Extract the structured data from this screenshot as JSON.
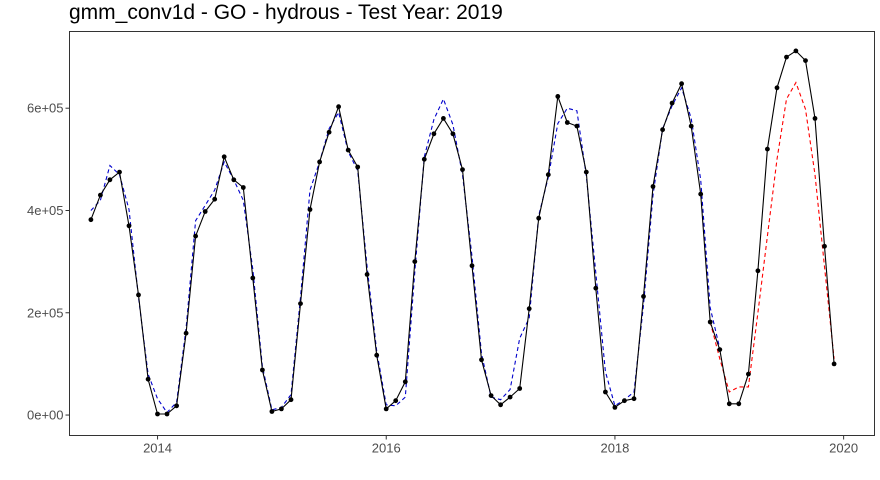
{
  "chart_data": {
    "type": "line",
    "title": "gmm_conv1d - GO - hydrous - Test Year: 2019",
    "xlabel": "",
    "ylabel": "",
    "xlim": [
      2013.23,
      2020.27
    ],
    "ylim": [
      -40000,
      750000
    ],
    "grid": false,
    "x_ticks": [
      {
        "value": 2014,
        "label": "2014"
      },
      {
        "value": 2016,
        "label": "2016"
      },
      {
        "value": 2018,
        "label": "2018"
      },
      {
        "value": 2020,
        "label": "2020"
      }
    ],
    "y_ticks": [
      {
        "value": 0,
        "label": "0e+00"
      },
      {
        "value": 200000,
        "label": "2e+05"
      },
      {
        "value": 400000,
        "label": "4e+05"
      },
      {
        "value": 600000,
        "label": "6e+05"
      }
    ],
    "series": [
      {
        "role": "observed",
        "color": "#000000",
        "dash": "solid",
        "markers": true,
        "points": [
          [
            2013.417,
            382000
          ],
          [
            2013.5,
            430000
          ],
          [
            2013.583,
            460000
          ],
          [
            2013.667,
            475000
          ],
          [
            2013.75,
            370000
          ],
          [
            2013.833,
            235000
          ],
          [
            2013.917,
            70000
          ],
          [
            2014.0,
            2000
          ],
          [
            2014.083,
            2000
          ],
          [
            2014.167,
            18000
          ],
          [
            2014.25,
            160000
          ],
          [
            2014.333,
            350000
          ],
          [
            2014.417,
            398000
          ],
          [
            2014.5,
            422000
          ],
          [
            2014.583,
            505000
          ],
          [
            2014.667,
            460000
          ],
          [
            2014.75,
            445000
          ],
          [
            2014.833,
            268000
          ],
          [
            2014.917,
            88000
          ],
          [
            2015.0,
            7000
          ],
          [
            2015.083,
            12000
          ],
          [
            2015.167,
            30000
          ],
          [
            2015.25,
            218000
          ],
          [
            2015.333,
            402000
          ],
          [
            2015.417,
            495000
          ],
          [
            2015.5,
            553000
          ],
          [
            2015.583,
            603000
          ],
          [
            2015.667,
            518000
          ],
          [
            2015.75,
            485000
          ],
          [
            2015.833,
            275000
          ],
          [
            2015.917,
            117000
          ],
          [
            2016.0,
            12000
          ],
          [
            2016.083,
            28000
          ],
          [
            2016.167,
            65000
          ],
          [
            2016.25,
            300000
          ],
          [
            2016.333,
            500000
          ],
          [
            2016.417,
            550000
          ],
          [
            2016.5,
            580000
          ],
          [
            2016.583,
            550000
          ],
          [
            2016.667,
            480000
          ],
          [
            2016.75,
            292000
          ],
          [
            2016.833,
            108000
          ],
          [
            2016.917,
            38000
          ],
          [
            2017.0,
            20000
          ],
          [
            2017.083,
            35000
          ],
          [
            2017.167,
            52000
          ],
          [
            2017.25,
            208000
          ],
          [
            2017.333,
            385000
          ],
          [
            2017.417,
            470000
          ],
          [
            2017.5,
            623000
          ],
          [
            2017.583,
            572000
          ],
          [
            2017.667,
            565000
          ],
          [
            2017.75,
            475000
          ],
          [
            2017.833,
            248000
          ],
          [
            2017.917,
            45000
          ],
          [
            2018.0,
            15000
          ],
          [
            2018.083,
            28000
          ],
          [
            2018.167,
            32000
          ],
          [
            2018.25,
            232000
          ],
          [
            2018.333,
            447000
          ],
          [
            2018.417,
            558000
          ],
          [
            2018.5,
            610000
          ],
          [
            2018.583,
            648000
          ],
          [
            2018.667,
            565000
          ],
          [
            2018.75,
            432000
          ],
          [
            2018.833,
            182000
          ],
          [
            2018.917,
            128000
          ],
          [
            2019.0,
            22000
          ],
          [
            2019.083,
            22000
          ],
          [
            2019.167,
            80000
          ],
          [
            2019.25,
            282000
          ],
          [
            2019.333,
            520000
          ],
          [
            2019.417,
            640000
          ],
          [
            2019.5,
            700000
          ],
          [
            2019.583,
            712000
          ],
          [
            2019.667,
            693000
          ],
          [
            2019.75,
            580000
          ],
          [
            2019.833,
            330000
          ],
          [
            2019.917,
            100000
          ]
        ]
      },
      {
        "role": "fitted",
        "color": "#0000cc",
        "dash": "dashed",
        "markers": false,
        "points": [
          [
            2013.417,
            400000
          ],
          [
            2013.5,
            420000
          ],
          [
            2013.583,
            488000
          ],
          [
            2013.667,
            470000
          ],
          [
            2013.75,
            402000
          ],
          [
            2013.833,
            230000
          ],
          [
            2013.917,
            80000
          ],
          [
            2014.0,
            32000
          ],
          [
            2014.083,
            5000
          ],
          [
            2014.167,
            25000
          ],
          [
            2014.25,
            170000
          ],
          [
            2014.333,
            380000
          ],
          [
            2014.417,
            410000
          ],
          [
            2014.5,
            440000
          ],
          [
            2014.583,
            495000
          ],
          [
            2014.667,
            460000
          ],
          [
            2014.75,
            420000
          ],
          [
            2014.833,
            285000
          ],
          [
            2014.917,
            95000
          ],
          [
            2015.0,
            10000
          ],
          [
            2015.083,
            15000
          ],
          [
            2015.167,
            40000
          ],
          [
            2015.25,
            230000
          ],
          [
            2015.333,
            440000
          ],
          [
            2015.417,
            495000
          ],
          [
            2015.5,
            560000
          ],
          [
            2015.583,
            592000
          ],
          [
            2015.667,
            515000
          ],
          [
            2015.75,
            478000
          ],
          [
            2015.833,
            290000
          ],
          [
            2015.917,
            125000
          ],
          [
            2016.0,
            20000
          ],
          [
            2016.083,
            18000
          ],
          [
            2016.167,
            35000
          ],
          [
            2016.25,
            280000
          ],
          [
            2016.333,
            505000
          ],
          [
            2016.417,
            578000
          ],
          [
            2016.5,
            618000
          ],
          [
            2016.583,
            568000
          ],
          [
            2016.667,
            470000
          ],
          [
            2016.75,
            310000
          ],
          [
            2016.833,
            120000
          ],
          [
            2016.917,
            35000
          ],
          [
            2017.0,
            30000
          ],
          [
            2017.083,
            50000
          ],
          [
            2017.167,
            150000
          ],
          [
            2017.25,
            190000
          ],
          [
            2017.333,
            390000
          ],
          [
            2017.417,
            465000
          ],
          [
            2017.5,
            570000
          ],
          [
            2017.583,
            600000
          ],
          [
            2017.667,
            595000
          ],
          [
            2017.75,
            468000
          ],
          [
            2017.833,
            278000
          ],
          [
            2017.917,
            85000
          ],
          [
            2018.0,
            18000
          ],
          [
            2018.083,
            30000
          ],
          [
            2018.167,
            45000
          ],
          [
            2018.25,
            215000
          ],
          [
            2018.333,
            430000
          ],
          [
            2018.417,
            560000
          ],
          [
            2018.5,
            605000
          ],
          [
            2018.583,
            640000
          ],
          [
            2018.667,
            580000
          ],
          [
            2018.75,
            460000
          ],
          [
            2018.833,
            210000
          ],
          [
            2018.917,
            130000
          ]
        ]
      },
      {
        "role": "forecast",
        "color": "#ff0000",
        "dash": "dashed",
        "markers": false,
        "points": [
          [
            2018.833,
            182000
          ],
          [
            2018.917,
            110000
          ],
          [
            2019.0,
            45000
          ],
          [
            2019.083,
            55000
          ],
          [
            2019.167,
            55000
          ],
          [
            2019.25,
            200000
          ],
          [
            2019.333,
            350000
          ],
          [
            2019.417,
            500000
          ],
          [
            2019.5,
            618000
          ],
          [
            2019.583,
            650000
          ],
          [
            2019.667,
            598000
          ],
          [
            2019.75,
            470000
          ],
          [
            2019.833,
            290000
          ],
          [
            2019.917,
            110000
          ]
        ]
      }
    ]
  }
}
